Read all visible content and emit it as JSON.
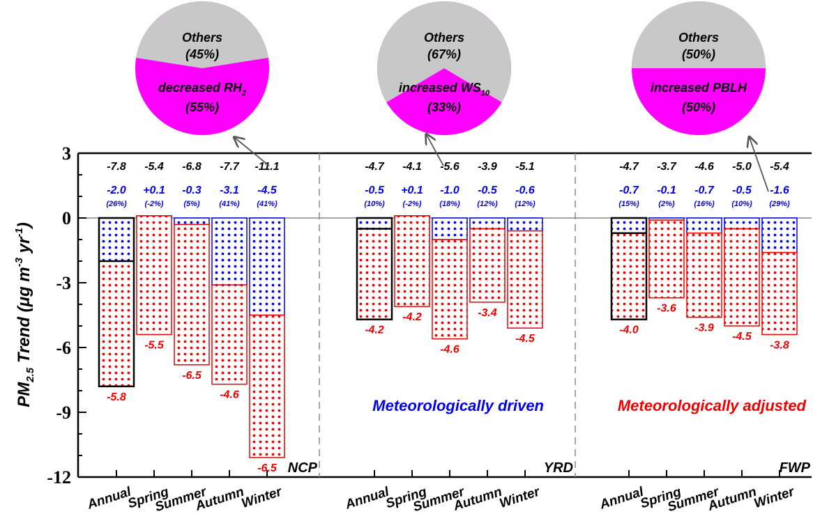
{
  "chart_data": {
    "type": "bar",
    "ylabel_main": "PM",
    "ylabel_sub": "2.5",
    "ylabel_rest": " Trend (μg m",
    "ylabel_sup1": "-3",
    "ylabel_mid": " yr",
    "ylabel_sup2": "-1",
    "ylabel_end": ")",
    "ylim": [
      -12,
      3
    ],
    "yticks": [
      "3",
      "0",
      "-3",
      "-6",
      "-9",
      "-12"
    ],
    "ytick_values": [
      3,
      0,
      -3,
      -6,
      -9,
      -12
    ],
    "legend_blue": "Meteorologically driven",
    "legend_red": "Meteorologically adjusted",
    "colors": {
      "blue": "#0000ee",
      "red": "#ee0000",
      "black": "#000000",
      "magenta": "#ff00ff",
      "gray": "#c8c8c8"
    },
    "regions": [
      {
        "name": "NCP",
        "categories": [
          "Annual",
          "Spring",
          "Summer",
          "Autumn",
          "Winter"
        ],
        "total": [
          -7.8,
          -5.4,
          -6.8,
          -7.7,
          -11.1
        ],
        "total_labels": [
          "-7.8",
          "-5.4",
          "-6.8",
          "-7.7",
          "-11.1"
        ],
        "met_driven": [
          -2.0,
          0.1,
          -0.3,
          -3.1,
          -4.5
        ],
        "met_driven_labels": [
          "-2.0",
          "+0.1",
          "-0.3",
          "-3.1",
          "-4.5"
        ],
        "met_driven_pct": [
          "(26%)",
          "(-2%)",
          "(5%)",
          "(41%)",
          "(41%)"
        ],
        "met_adjusted": [
          -5.8,
          -5.5,
          -6.5,
          -4.6,
          -6.5
        ],
        "met_adjusted_labels": [
          "-5.8",
          "-5.5",
          "-6.5",
          "-4.6",
          "-6.5"
        ],
        "pie": {
          "slices": [
            {
              "label": "Others",
              "pct": "(45%)",
              "value": 45
            },
            {
              "label": "decreased RH",
              "sub": "2",
              "pct": "(55%)",
              "value": 55
            }
          ]
        }
      },
      {
        "name": "YRD",
        "categories": [
          "Annual",
          "Spring",
          "Summer",
          "Autumn",
          "Winter"
        ],
        "total": [
          -4.7,
          -4.1,
          -5.6,
          -3.9,
          -5.1
        ],
        "total_labels": [
          "-4.7",
          "-4.1",
          "-5.6",
          "-3.9",
          "-5.1"
        ],
        "met_driven": [
          -0.5,
          0.1,
          -1.0,
          -0.5,
          -0.6
        ],
        "met_driven_labels": [
          "-0.5",
          "+0.1",
          "-1.0",
          "-0.5",
          "-0.6"
        ],
        "met_driven_pct": [
          "(10%)",
          "(-2%)",
          "(18%)",
          "(12%)",
          "(12%)"
        ],
        "met_adjusted": [
          -4.2,
          -4.2,
          -4.6,
          -3.4,
          -4.5
        ],
        "met_adjusted_labels": [
          "-4.2",
          "-4.2",
          "-4.6",
          "-3.4",
          "-4.5"
        ],
        "pie": {
          "slices": [
            {
              "label": "Others",
              "pct": "(67%)",
              "value": 67
            },
            {
              "label": "increased WS",
              "sub": "10",
              "pct": "(33%)",
              "value": 33
            }
          ]
        }
      },
      {
        "name": "FWP",
        "categories": [
          "Annual",
          "Spring",
          "Summer",
          "Autumn",
          "Winter"
        ],
        "total": [
          -4.7,
          -3.7,
          -4.6,
          -5.0,
          -5.4
        ],
        "total_labels": [
          "-4.7",
          "-3.7",
          "-4.6",
          "-5.0",
          "-5.4"
        ],
        "met_driven": [
          -0.7,
          -0.1,
          -0.7,
          -0.5,
          -1.6
        ],
        "met_driven_labels": [
          "-0.7",
          "-0.1",
          "-0.7",
          "-0.5",
          "-1.6"
        ],
        "met_driven_pct": [
          "(15%)",
          "(2%)",
          "(16%)",
          "(10%)",
          "(29%)"
        ],
        "met_adjusted": [
          -4.0,
          -3.6,
          -3.9,
          -4.5,
          -3.8
        ],
        "met_adjusted_labels": [
          "-4.0",
          "-3.6",
          "-3.9",
          "-4.5",
          "-3.8"
        ],
        "pie": {
          "slices": [
            {
              "label": "Others",
              "pct": "(50%)",
              "value": 50
            },
            {
              "label": "increased PBLH",
              "pct": "(50%)",
              "value": 50
            }
          ]
        }
      }
    ]
  }
}
